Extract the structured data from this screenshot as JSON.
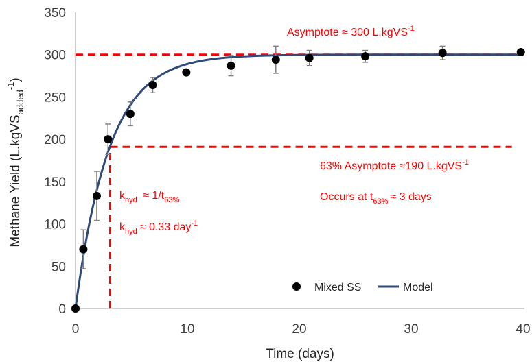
{
  "chart_data": {
    "type": "scatter",
    "xlabel": "Time (days)",
    "ylabel_main": "Methane Yield (L.kgVS",
    "ylabel_sub": "added",
    "ylabel_sup": "-1",
    "ylabel_close": ")",
    "xlim": [
      0,
      40
    ],
    "ylim": [
      0,
      350
    ],
    "x_ticks": [
      "0",
      "10",
      "20",
      "30",
      "40"
    ],
    "y_ticks": [
      "0",
      "50",
      "100",
      "150",
      "200",
      "250",
      "300",
      "350"
    ],
    "series": [
      {
        "name": "Mixed SS",
        "kind": "points",
        "color": "#000000",
        "points": [
          {
            "x": 0,
            "y": 0,
            "err": 0
          },
          {
            "x": 0.7,
            "y": 70,
            "err": 23
          },
          {
            "x": 1.9,
            "y": 133,
            "err": 29
          },
          {
            "x": 2.9,
            "y": 200,
            "err": 18
          },
          {
            "x": 4.9,
            "y": 230,
            "err": 14
          },
          {
            "x": 6.9,
            "y": 264,
            "err": 9
          },
          {
            "x": 9.9,
            "y": 279,
            "err": 0
          },
          {
            "x": 13.9,
            "y": 287,
            "err": 12
          },
          {
            "x": 17.9,
            "y": 294,
            "err": 16
          },
          {
            "x": 20.9,
            "y": 296,
            "err": 9
          },
          {
            "x": 25.9,
            "y": 298,
            "err": 7
          },
          {
            "x": 32.8,
            "y": 302,
            "err": 8
          },
          {
            "x": 39.8,
            "y": 303,
            "err": 0
          }
        ]
      },
      {
        "name": "Model",
        "kind": "curve",
        "color": "#2e4a7a",
        "model": {
          "asymptote": 300,
          "k": 0.33
        }
      }
    ],
    "reference_lines": [
      {
        "type": "hline",
        "y": 300,
        "x_from": 0,
        "x_to": 40,
        "color": "#ff0000"
      },
      {
        "type": "hline",
        "y": 191,
        "x_from": 3.1,
        "x_to": 39,
        "color": "#ff0000"
      },
      {
        "type": "vline",
        "x": 3.1,
        "y_from": 0,
        "y_to": 191,
        "color": "#ff0000"
      }
    ],
    "legend_position": "bottom-right",
    "grid": false
  },
  "annotations": {
    "asymptote_main": "Asymptote ≈ 300 L.kgVS",
    "asymptote_sup": "-1",
    "pct63_main": "63% Asymptote  ≈190 L.kgVS",
    "pct63_sup": "-1",
    "occurs_main": "Occurs at t",
    "occurs_sub": "63%",
    "occurs_tail": "≈ 3 days",
    "khyd1_k": "k",
    "khyd1_sub": "hyd",
    "khyd1_mid": " ≈ 1/t",
    "khyd1_sub2": "63%",
    "khyd2_k": "k",
    "khyd2_sub": "hyd",
    "khyd2_mid": "≈ 0.33 day",
    "khyd2_sup": "-1"
  },
  "legend": {
    "points_label": "Mixed SS",
    "line_label": "Model"
  }
}
